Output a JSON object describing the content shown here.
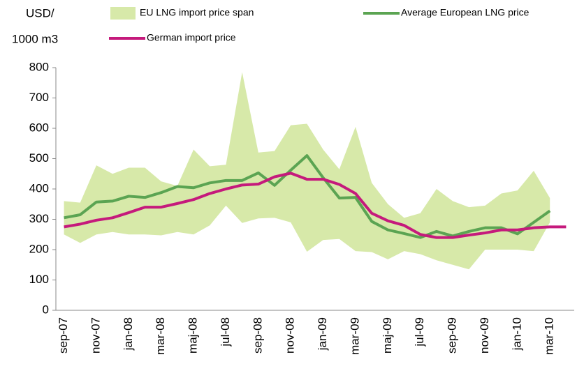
{
  "chart_data": {
    "type": "line",
    "y_label": [
      "USD/",
      "1000 m3"
    ],
    "categories": [
      "sep-07",
      null,
      "nov-07",
      null,
      "jan-08",
      null,
      "mar-08",
      null,
      "maj-08",
      null,
      "jul-08",
      null,
      "sep-08",
      null,
      "nov-08",
      null,
      "jan-09",
      null,
      "mar-09",
      null,
      "maj-09",
      null,
      "jul-09",
      null,
      "sep-09",
      null,
      "nov-09",
      null,
      "jan-10",
      null,
      "mar-10",
      null
    ],
    "band": {
      "name": "EU LNG import price  span",
      "color": "#d7e9a9",
      "high": [
        360,
        355,
        478,
        450,
        470,
        470,
        425,
        410,
        530,
        475,
        480,
        785,
        520,
        525,
        610,
        615,
        530,
        465,
        605,
        420,
        350,
        305,
        320,
        400,
        360,
        340,
        345,
        385,
        395,
        460,
        370,
        null
      ],
      "low": [
        250,
        222,
        250,
        258,
        250,
        250,
        247,
        258,
        250,
        280,
        345,
        288,
        303,
        305,
        290,
        193,
        232,
        235,
        195,
        192,
        168,
        195,
        185,
        165,
        150,
        135,
        200,
        200,
        200,
        195,
        290,
        null
      ]
    },
    "series": [
      {
        "name": "Average European LNG price",
        "color": "#5ba452",
        "values": [
          305,
          315,
          357,
          360,
          376,
          372,
          388,
          408,
          404,
          420,
          428,
          428,
          453,
          412,
          462,
          510,
          437,
          370,
          372,
          293,
          265,
          253,
          240,
          260,
          245,
          260,
          272,
          272,
          252,
          290,
          328,
          null
        ]
      },
      {
        "name": "German import price",
        "color": "#c51a7c",
        "values": [
          275,
          284,
          297,
          305,
          322,
          340,
          340,
          352,
          365,
          385,
          400,
          413,
          416,
          440,
          452,
          432,
          432,
          415,
          385,
          320,
          295,
          280,
          250,
          240,
          240,
          248,
          255,
          265,
          265,
          272,
          275,
          275
        ]
      }
    ],
    "ylim": [
      0,
      800
    ],
    "yticks": [
      0,
      100,
      200,
      300,
      400,
      500,
      600,
      700,
      800
    ]
  }
}
